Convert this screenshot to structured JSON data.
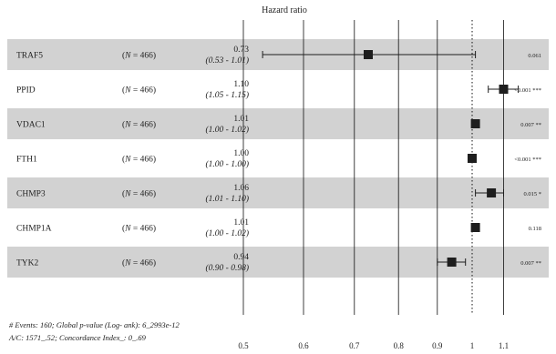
{
  "chart_data": {
    "type": "forest",
    "title": "Hazard ratio",
    "n_label_prefix": "N = ",
    "rows": [
      {
        "gene": "TRAF5",
        "n": 466,
        "hr_text": "0.73",
        "ci_text": "(0.53 - 1.01)",
        "hr": 0.73,
        "ci_low": 0.53,
        "ci_high": 1.01,
        "p_text": "0.061"
      },
      {
        "gene": "PPID",
        "n": 466,
        "hr_text": "1.10",
        "ci_text": "(1.05 - 1.15)",
        "hr": 1.1,
        "ci_low": 1.05,
        "ci_high": 1.15,
        "p_text": "<0.001 ***"
      },
      {
        "gene": "VDAC1",
        "n": 466,
        "hr_text": "1.01",
        "ci_text": "(1.00 - 1.02)",
        "hr": 1.01,
        "ci_low": 1.0,
        "ci_high": 1.02,
        "p_text": "0.007 **"
      },
      {
        "gene": "FTH1",
        "n": 466,
        "hr_text": "1.00",
        "ci_text": "(1.00 - 1.00)",
        "hr": 1.0,
        "ci_low": 1.0,
        "ci_high": 1.0,
        "p_text": "<0.001 ***"
      },
      {
        "gene": "CHMP3",
        "n": 466,
        "hr_text": "1.06",
        "ci_text": "(1.01 - 1.10)",
        "hr": 1.06,
        "ci_low": 1.01,
        "ci_high": 1.1,
        "p_text": "0.015 *"
      },
      {
        "gene": "CHMP1A",
        "n": 466,
        "hr_text": "1.01",
        "ci_text": "(1.00 - 1.02)",
        "hr": 1.01,
        "ci_low": 1.0,
        "ci_high": 1.02,
        "p_text": "0.118"
      },
      {
        "gene": "TYK2",
        "n": 466,
        "hr_text": "0.94",
        "ci_text": "(0.90 - 0.98)",
        "hr": 0.94,
        "ci_low": 0.9,
        "ci_high": 0.98,
        "p_text": "0.007 **"
      }
    ],
    "x_ticks": [
      0.5,
      0.6,
      0.7,
      0.8,
      0.9,
      1,
      1.1
    ],
    "x_tick_labels": [
      "0.5",
      "0.6",
      "0.7",
      "0.8",
      "0.9",
      "1",
      "1.1"
    ],
    "xlim": [
      0.5,
      1.15
    ],
    "x_scale": "log",
    "reference_line": 1,
    "footnote_lines": [
      "# Events: 160; Global p-value (Log- ank): 6_2993e-12",
      "A/C: 1571_.52; Concordance Index_: 0_.69"
    ],
    "colors": {
      "row_band": "#d2d2d2",
      "marker": "#1e1e1e",
      "text": "#222222"
    }
  }
}
